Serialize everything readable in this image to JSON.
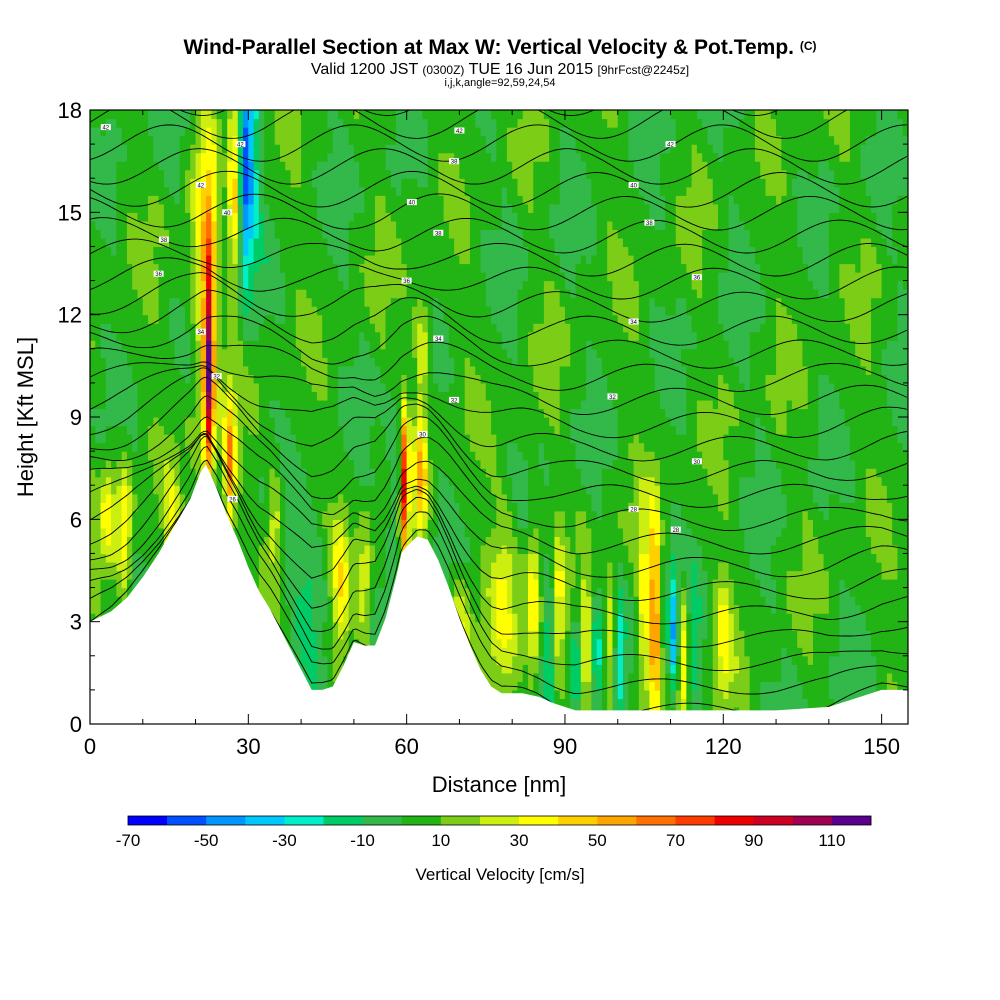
{
  "header": {
    "title": "Wind-Parallel Section at Max W: Vertical Velocity & Pot.Temp.",
    "copyright": "(C)",
    "valid_prefix": "Valid 1200 JST",
    "valid_utc": "(0300Z)",
    "valid_date": "TUE 16 Jun 2015",
    "forecast": "[9hrFcst@2245z]",
    "params": "i,j,k,angle=92,59,24,54"
  },
  "chart_data": {
    "type": "heatmap",
    "xlabel": "Distance [nm]",
    "ylabel": "Height [Kft MSL]",
    "xlim": [
      0,
      155
    ],
    "ylim": [
      0,
      18
    ],
    "x_ticks": [
      0,
      30,
      60,
      90,
      120,
      150
    ],
    "y_ticks": [
      0,
      3,
      6,
      9,
      12,
      15,
      18
    ],
    "colorbar": {
      "label": "Vertical Velocity [cm/s]",
      "ticks": [
        -70,
        -50,
        -30,
        -10,
        10,
        30,
        50,
        70,
        90,
        110
      ],
      "bins": [
        {
          "min": -70,
          "max": -60,
          "color": "#0000ff"
        },
        {
          "min": -60,
          "max": -50,
          "color": "#0050ff"
        },
        {
          "min": -50,
          "max": -40,
          "color": "#0096ff"
        },
        {
          "min": -40,
          "max": -30,
          "color": "#00c8ff"
        },
        {
          "min": -30,
          "max": -20,
          "color": "#00eec8"
        },
        {
          "min": -20,
          "max": -10,
          "color": "#00cc66"
        },
        {
          "min": -10,
          "max": 0,
          "color": "#33b84a"
        },
        {
          "min": 0,
          "max": 10,
          "color": "#22b314"
        },
        {
          "min": 10,
          "max": 20,
          "color": "#7ccd17"
        },
        {
          "min": 20,
          "max": 30,
          "color": "#ccee10"
        },
        {
          "min": 30,
          "max": 40,
          "color": "#ffff00"
        },
        {
          "min": 40,
          "max": 50,
          "color": "#ffd000"
        },
        {
          "min": 50,
          "max": 60,
          "color": "#ffa500"
        },
        {
          "min": 60,
          "max": 70,
          "color": "#ff7000"
        },
        {
          "min": 70,
          "max": 80,
          "color": "#ff3c00"
        },
        {
          "min": 80,
          "max": 90,
          "color": "#ee0000"
        },
        {
          "min": 90,
          "max": 100,
          "color": "#cc0020"
        },
        {
          "min": 100,
          "max": 110,
          "color": "#9e0050"
        },
        {
          "min": 110,
          "max": 120,
          "color": "#5a008c"
        }
      ]
    },
    "terrain": {
      "x": [
        0,
        4,
        7,
        10,
        13,
        16,
        19,
        21,
        22,
        24,
        26,
        28,
        30,
        32,
        34,
        36,
        38,
        40,
        42,
        44,
        46,
        48,
        50,
        52,
        54,
        56,
        58,
        59,
        60,
        62,
        64,
        66,
        68,
        70,
        72,
        74,
        76,
        78,
        80,
        82,
        85,
        88,
        92,
        100,
        110,
        120,
        130,
        140,
        146,
        150,
        155
      ],
      "height_kft": [
        3.0,
        3.3,
        3.7,
        4.3,
        5.0,
        5.8,
        6.6,
        7.4,
        7.6,
        6.9,
        6.1,
        5.4,
        4.6,
        3.9,
        3.4,
        2.8,
        2.2,
        1.6,
        1.0,
        1.0,
        1.1,
        1.7,
        2.4,
        2.3,
        2.3,
        3.1,
        4.3,
        5.0,
        5.2,
        5.5,
        5.4,
        4.8,
        4.0,
        3.1,
        2.3,
        1.6,
        1.1,
        0.9,
        0.9,
        0.9,
        0.8,
        0.6,
        0.4,
        0.4,
        0.4,
        0.4,
        0.4,
        0.5,
        0.8,
        1.0,
        1.0
      ]
    },
    "w_features": [
      {
        "x": 22.5,
        "z": 10.5,
        "w": 90,
        "sx": 0.7,
        "sz": 2.4
      },
      {
        "x": 22.0,
        "z": 13.5,
        "w": 35,
        "sx": 2.0,
        "sz": 3.5
      },
      {
        "x": 26.5,
        "z": 7.5,
        "w": 55,
        "sx": 0.8,
        "sz": 1.4
      },
      {
        "x": 29.3,
        "z": 16.5,
        "w": -55,
        "sx": 0.9,
        "sz": 2.5
      },
      {
        "x": 27.3,
        "z": 16.0,
        "w": 40,
        "sx": 0.9,
        "sz": 2.5
      },
      {
        "x": 31.0,
        "z": 16.5,
        "w": -25,
        "sx": 1.0,
        "sz": 2.0
      },
      {
        "x": 25.5,
        "z": 15.0,
        "w": -20,
        "sx": 1.0,
        "sz": 2.0
      },
      {
        "x": 57.8,
        "z": 7.3,
        "w": -20,
        "sx": 1.2,
        "sz": 1.5
      },
      {
        "x": 59.6,
        "z": 7.1,
        "w": 80,
        "sx": 0.55,
        "sz": 1.5
      },
      {
        "x": 62.7,
        "z": 7.4,
        "w": 45,
        "sx": 0.9,
        "sz": 1.6
      },
      {
        "x": 63.0,
        "z": 11.2,
        "w": 28,
        "sx": 1.2,
        "sz": 1.0
      },
      {
        "x": 6.5,
        "z": 5.8,
        "w": 35,
        "sx": 1.0,
        "sz": 1.5
      },
      {
        "x": 3.5,
        "z": 6.3,
        "w": 28,
        "sx": 1.0,
        "sz": 1.0
      },
      {
        "x": 15.5,
        "z": 5.5,
        "w": 28,
        "sx": 1.0,
        "sz": 1.2
      },
      {
        "x": 35.0,
        "z": 6.0,
        "w": 28,
        "sx": 1.0,
        "sz": 1.2
      },
      {
        "x": 42.0,
        "z": 4.0,
        "w": -20,
        "sx": 2.5,
        "sz": 1.5
      },
      {
        "x": 47.5,
        "z": 4.0,
        "w": 30,
        "sx": 1.2,
        "sz": 1.5
      },
      {
        "x": 52.0,
        "z": 3.8,
        "w": 28,
        "sx": 1.0,
        "sz": 1.4
      },
      {
        "x": 70.0,
        "z": 2.8,
        "w": 30,
        "sx": 1.5,
        "sz": 1.2
      },
      {
        "x": 78.5,
        "z": 4.0,
        "w": 25,
        "sx": 2.0,
        "sz": 1.8
      },
      {
        "x": 84.0,
        "z": 3.5,
        "w": 35,
        "sx": 1.0,
        "sz": 1.8
      },
      {
        "x": 87.0,
        "z": 2.5,
        "w": -20,
        "sx": 1.0,
        "sz": 1.8
      },
      {
        "x": 88.8,
        "z": 3.0,
        "w": 30,
        "sx": 0.7,
        "sz": 1.8
      },
      {
        "x": 92.0,
        "z": 2.0,
        "w": -30,
        "sx": 0.6,
        "sz": 1.2
      },
      {
        "x": 94.0,
        "z": 2.5,
        "w": 28,
        "sx": 0.7,
        "sz": 1.5
      },
      {
        "x": 96.0,
        "z": 2.0,
        "w": -25,
        "sx": 0.6,
        "sz": 1.2
      },
      {
        "x": 98.5,
        "z": 2.5,
        "w": 30,
        "sx": 0.7,
        "sz": 1.5
      },
      {
        "x": 100.5,
        "z": 2.0,
        "w": -25,
        "sx": 0.6,
        "sz": 1.2
      },
      {
        "x": 107.0,
        "z": 3.2,
        "w": 65,
        "sx": 0.6,
        "sz": 2.2
      },
      {
        "x": 105.0,
        "z": 3.5,
        "w": 32,
        "sx": 0.8,
        "sz": 2.0
      },
      {
        "x": 110.5,
        "z": 2.5,
        "w": -40,
        "sx": 0.7,
        "sz": 1.5
      },
      {
        "x": 112.5,
        "z": 2.0,
        "w": 35,
        "sx": 0.7,
        "sz": 1.5
      },
      {
        "x": 114.5,
        "z": 2.2,
        "w": -20,
        "sx": 0.7,
        "sz": 1.2
      },
      {
        "x": 120.0,
        "z": 2.5,
        "w": 25,
        "sx": 1.2,
        "sz": 1.5
      }
    ],
    "theta_labels": [
      {
        "x": 3,
        "z": 17.5,
        "text": "42"
      },
      {
        "x": 21,
        "z": 15.8,
        "text": "42"
      },
      {
        "x": 28.5,
        "z": 17.0,
        "text": "42"
      },
      {
        "x": 70,
        "z": 17.4,
        "text": "42"
      },
      {
        "x": 110,
        "z": 17.0,
        "text": "42"
      },
      {
        "x": 26,
        "z": 15.0,
        "text": "40"
      },
      {
        "x": 61,
        "z": 15.3,
        "text": "40"
      },
      {
        "x": 103,
        "z": 15.8,
        "text": "40"
      },
      {
        "x": 14,
        "z": 14.2,
        "text": "38"
      },
      {
        "x": 66,
        "z": 14.4,
        "text": "38"
      },
      {
        "x": 69,
        "z": 16.5,
        "text": "38"
      },
      {
        "x": 106,
        "z": 14.7,
        "text": "38"
      },
      {
        "x": 13,
        "z": 13.2,
        "text": "36"
      },
      {
        "x": 60,
        "z": 13.0,
        "text": "36"
      },
      {
        "x": 115,
        "z": 13.1,
        "text": "36"
      },
      {
        "x": 21,
        "z": 11.5,
        "text": "34"
      },
      {
        "x": 66,
        "z": 11.3,
        "text": "34"
      },
      {
        "x": 103,
        "z": 11.8,
        "text": "34"
      },
      {
        "x": 24,
        "z": 10.2,
        "text": "32"
      },
      {
        "x": 69,
        "z": 9.5,
        "text": "32"
      },
      {
        "x": 99,
        "z": 9.6,
        "text": "32"
      },
      {
        "x": 63,
        "z": 8.5,
        "text": "30"
      },
      {
        "x": 115,
        "z": 7.7,
        "text": "30"
      },
      {
        "x": 103,
        "z": 6.3,
        "text": "28"
      },
      {
        "x": 111,
        "z": 5.7,
        "text": "28"
      },
      {
        "x": 27,
        "z": 6.6,
        "text": "26"
      }
    ]
  }
}
